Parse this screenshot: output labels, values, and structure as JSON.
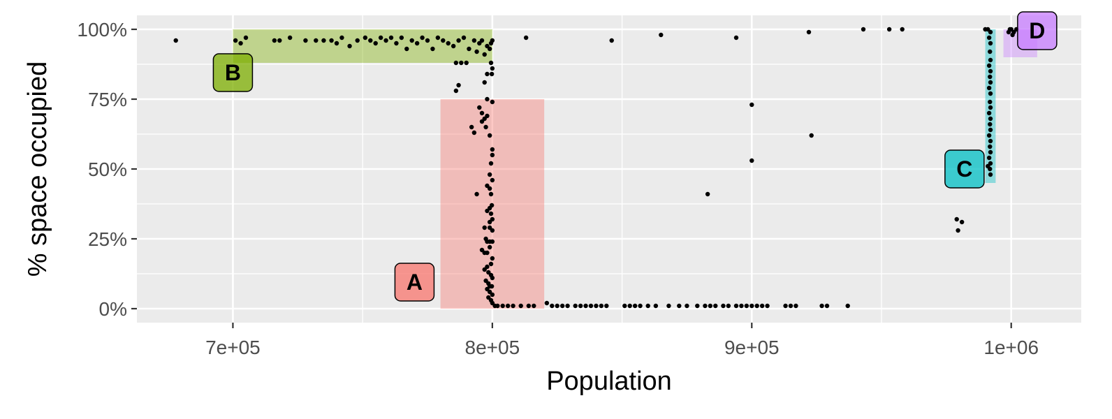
{
  "chart_data": {
    "type": "scatter",
    "title": "",
    "xlabel": "Population",
    "ylabel": "% space  occupied",
    "xlim": [
      663000,
      1027000
    ],
    "ylim": [
      -0.05,
      1.05
    ],
    "grid": true,
    "x_ticks": [
      {
        "value": 700000,
        "label": "7e+05"
      },
      {
        "value": 800000,
        "label": "8e+05"
      },
      {
        "value": 900000,
        "label": "9e+05"
      },
      {
        "value": 1000000,
        "label": "1e+06"
      }
    ],
    "x_minor_ticks": [
      750000,
      850000,
      950000
    ],
    "y_ticks": [
      {
        "value": 0,
        "label": "0%"
      },
      {
        "value": 0.25,
        "label": "25%"
      },
      {
        "value": 0.5,
        "label": "50%"
      },
      {
        "value": 0.75,
        "label": "75%"
      },
      {
        "value": 1.0,
        "label": "100%"
      }
    ],
    "y_minor_ticks": [
      0.125,
      0.375,
      0.625,
      0.875
    ],
    "regions": [
      {
        "label": "A",
        "color": "#F8766D",
        "x": [
          780000,
          820000
        ],
        "y": [
          0,
          0.75
        ],
        "label_at": [
          770000,
          0.095
        ]
      },
      {
        "label": "B",
        "color": "#7CAE00",
        "x": [
          700000,
          800000
        ],
        "y": [
          0.88,
          1.0
        ],
        "label_at": [
          700000,
          0.845
        ]
      },
      {
        "label": "C",
        "color": "#00BFC4",
        "x": [
          990000,
          994000
        ],
        "y": [
          0.45,
          1.0
        ],
        "label_at": [
          982000,
          0.5
        ]
      },
      {
        "label": "D",
        "color": "#C77CFF",
        "x": [
          997000,
          1010000
        ],
        "y": [
          0.9,
          1.0
        ],
        "label_at": [
          1010000,
          0.995
        ]
      }
    ],
    "series": [
      {
        "color": "#000000",
        "points": [
          [
            678000,
            0.96
          ],
          [
            701000,
            0.96
          ],
          [
            703000,
            0.95
          ],
          [
            705000,
            0.97
          ],
          [
            716000,
            0.96
          ],
          [
            718000,
            0.96
          ],
          [
            722000,
            0.97
          ],
          [
            728000,
            0.96
          ],
          [
            732000,
            0.96
          ],
          [
            735000,
            0.96
          ],
          [
            738000,
            0.96
          ],
          [
            740000,
            0.95
          ],
          [
            742000,
            0.97
          ],
          [
            745000,
            0.94
          ],
          [
            748000,
            0.96
          ],
          [
            751000,
            0.97
          ],
          [
            753000,
            0.96
          ],
          [
            755000,
            0.95
          ],
          [
            757000,
            0.97
          ],
          [
            759000,
            0.96
          ],
          [
            761000,
            0.97
          ],
          [
            763000,
            0.95
          ],
          [
            765000,
            0.97
          ],
          [
            767000,
            0.93
          ],
          [
            769000,
            0.96
          ],
          [
            771000,
            0.95
          ],
          [
            773000,
            0.97
          ],
          [
            775000,
            0.96
          ],
          [
            777000,
            0.93
          ],
          [
            779000,
            0.97
          ],
          [
            781000,
            0.96
          ],
          [
            783000,
            0.95
          ],
          [
            785000,
            0.94
          ],
          [
            787000,
            0.96
          ],
          [
            789000,
            0.97
          ],
          [
            791000,
            0.93
          ],
          [
            793000,
            0.96
          ],
          [
            794000,
            0.92
          ],
          [
            795000,
            0.95
          ],
          [
            796000,
            0.96
          ],
          [
            797000,
            0.91
          ],
          [
            798000,
            0.94
          ],
          [
            799000,
            0.93
          ],
          [
            799500,
            0.95
          ],
          [
            800000,
            0.96
          ],
          [
            786000,
            0.88
          ],
          [
            788000,
            0.88
          ],
          [
            790000,
            0.88
          ],
          [
            799500,
            0.88
          ],
          [
            800000,
            0.86
          ],
          [
            799800,
            0.84
          ],
          [
            798000,
            0.84
          ],
          [
            786000,
            0.78
          ],
          [
            787000,
            0.8
          ],
          [
            797000,
            0.81
          ],
          [
            798000,
            0.75
          ],
          [
            800000,
            0.74
          ],
          [
            795000,
            0.72
          ],
          [
            796000,
            0.7
          ],
          [
            797000,
            0.68
          ],
          [
            798000,
            0.69
          ],
          [
            796000,
            0.67
          ],
          [
            797500,
            0.65
          ],
          [
            792000,
            0.65
          ],
          [
            793000,
            0.63
          ],
          [
            799000,
            0.62
          ],
          [
            800000,
            0.57
          ],
          [
            800000,
            0.55
          ],
          [
            799500,
            0.52
          ],
          [
            799000,
            0.48
          ],
          [
            800000,
            0.46
          ],
          [
            798000,
            0.44
          ],
          [
            799000,
            0.43
          ],
          [
            799500,
            0.41
          ],
          [
            794000,
            0.41
          ],
          [
            799800,
            0.37
          ],
          [
            799000,
            0.36
          ],
          [
            799500,
            0.34
          ],
          [
            798000,
            0.35
          ],
          [
            800000,
            0.32
          ],
          [
            799000,
            0.31
          ],
          [
            797000,
            0.29
          ],
          [
            799000,
            0.29
          ],
          [
            800000,
            0.28
          ],
          [
            797500,
            0.25
          ],
          [
            798000,
            0.24
          ],
          [
            799000,
            0.24
          ],
          [
            800000,
            0.24
          ],
          [
            796000,
            0.21
          ],
          [
            797000,
            0.2
          ],
          [
            798000,
            0.2
          ],
          [
            799000,
            0.22
          ],
          [
            800000,
            0.18
          ],
          [
            799500,
            0.16
          ],
          [
            798000,
            0.15
          ],
          [
            797000,
            0.14
          ],
          [
            798500,
            0.13
          ],
          [
            799500,
            0.12
          ],
          [
            800000,
            0.11
          ],
          [
            797500,
            0.1
          ],
          [
            798500,
            0.09
          ],
          [
            799000,
            0.08
          ],
          [
            799800,
            0.08
          ],
          [
            798000,
            0.07
          ],
          [
            799000,
            0.06
          ],
          [
            800000,
            0.05
          ],
          [
            798500,
            0.04
          ],
          [
            799500,
            0.03
          ],
          [
            800000,
            0.02
          ],
          [
            801000,
            0.01
          ],
          [
            802000,
            0.01
          ],
          [
            804000,
            0.01
          ],
          [
            806000,
            0.01
          ],
          [
            808000,
            0.01
          ],
          [
            811000,
            0.01
          ],
          [
            814000,
            0.01
          ],
          [
            816000,
            0.01
          ],
          [
            821000,
            0.02
          ],
          [
            823000,
            0.01
          ],
          [
            825000,
            0.01
          ],
          [
            827000,
            0.01
          ],
          [
            829000,
            0.01
          ],
          [
            832000,
            0.01
          ],
          [
            834000,
            0.01
          ],
          [
            836000,
            0.01
          ],
          [
            838000,
            0.01
          ],
          [
            840000,
            0.01
          ],
          [
            842000,
            0.01
          ],
          [
            844000,
            0.01
          ],
          [
            851000,
            0.01
          ],
          [
            853000,
            0.01
          ],
          [
            855000,
            0.01
          ],
          [
            857000,
            0.01
          ],
          [
            860000,
            0.01
          ],
          [
            863000,
            0.01
          ],
          [
            868000,
            0.01
          ],
          [
            872000,
            0.01
          ],
          [
            875000,
            0.01
          ],
          [
            879000,
            0.01
          ],
          [
            882000,
            0.01
          ],
          [
            884000,
            0.01
          ],
          [
            886000,
            0.01
          ],
          [
            889000,
            0.01
          ],
          [
            891000,
            0.01
          ],
          [
            894000,
            0.01
          ],
          [
            896000,
            0.01
          ],
          [
            898000,
            0.01
          ],
          [
            900000,
            0.01
          ],
          [
            902000,
            0.01
          ],
          [
            904000,
            0.01
          ],
          [
            906000,
            0.01
          ],
          [
            913000,
            0.01
          ],
          [
            915000,
            0.01
          ],
          [
            917000,
            0.01
          ],
          [
            927000,
            0.01
          ],
          [
            929000,
            0.01
          ],
          [
            937000,
            0.01
          ],
          [
            813000,
            0.97
          ],
          [
            846000,
            0.96
          ],
          [
            865000,
            0.98
          ],
          [
            894000,
            0.97
          ],
          [
            922000,
            0.99
          ],
          [
            943000,
            1.0
          ],
          [
            953000,
            1.0
          ],
          [
            958000,
            1.0
          ],
          [
            900000,
            0.73
          ],
          [
            900000,
            0.53
          ],
          [
            923000,
            0.62
          ],
          [
            883000,
            0.41
          ],
          [
            979000,
            0.32
          ],
          [
            979500,
            0.28
          ],
          [
            981000,
            0.31
          ],
          [
            990000,
            1.0
          ],
          [
            991000,
            1.0
          ],
          [
            992000,
            0.99
          ],
          [
            991500,
            0.97
          ],
          [
            992000,
            0.95
          ],
          [
            991800,
            0.92
          ],
          [
            992000,
            0.89
          ],
          [
            991500,
            0.87
          ],
          [
            992000,
            0.85
          ],
          [
            991800,
            0.83
          ],
          [
            992000,
            0.81
          ],
          [
            991500,
            0.79
          ],
          [
            992000,
            0.77
          ],
          [
            991800,
            0.74
          ],
          [
            992000,
            0.72
          ],
          [
            991500,
            0.7
          ],
          [
            992000,
            0.68
          ],
          [
            991800,
            0.66
          ],
          [
            992000,
            0.64
          ],
          [
            991500,
            0.62
          ],
          [
            992000,
            0.6
          ],
          [
            991800,
            0.58
          ],
          [
            992000,
            0.56
          ],
          [
            991500,
            0.54
          ],
          [
            992000,
            0.52
          ],
          [
            991800,
            0.5
          ],
          [
            992000,
            0.48
          ],
          [
            991000,
            0.51
          ],
          [
            999000,
            0.99
          ],
          [
            1000000,
            1.0
          ],
          [
            1000500,
            0.98
          ],
          [
            999500,
            1.0
          ],
          [
            1001000,
            0.99
          ],
          [
            1002000,
            1.0
          ]
        ]
      }
    ]
  }
}
